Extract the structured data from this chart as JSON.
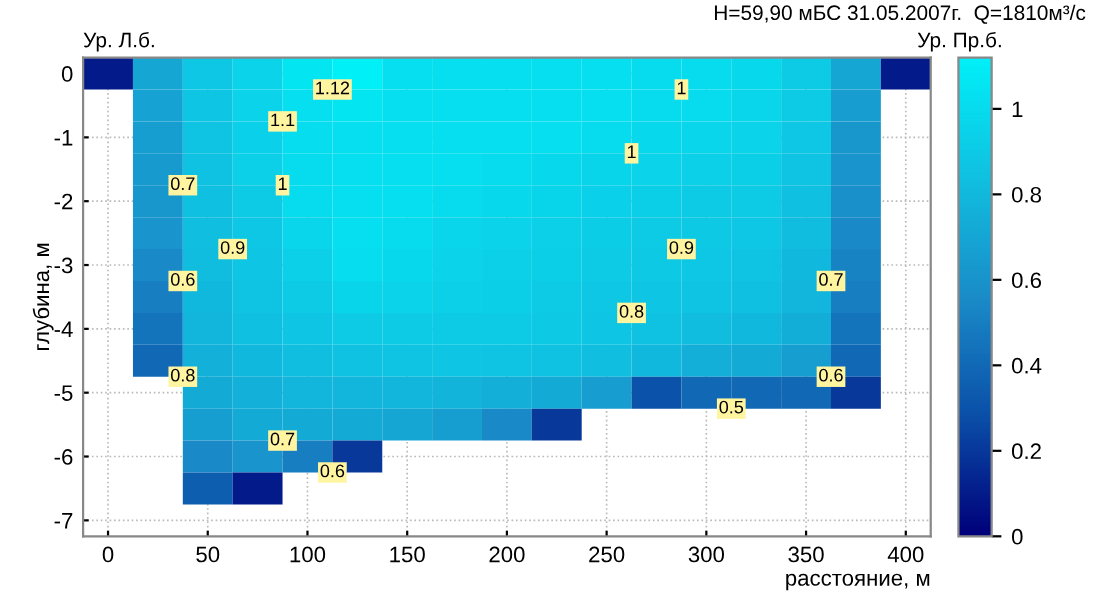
{
  "chart_data": {
    "type": "heatmap",
    "title": "H=59,90 мБС 31.05.2007г.  Q=1810м³/с",
    "xlabel": "расстояние, м",
    "ylabel": "глубина, м",
    "categories": [
      "0",
      null,
      "50",
      null,
      "100",
      null,
      "150",
      null,
      "200",
      null,
      "250",
      null,
      "300",
      null,
      "350",
      null,
      "400"
    ],
    "y_categories": [
      "0",
      null,
      "-1",
      null,
      "-2",
      null,
      "-3",
      null,
      "-4",
      null,
      "-5",
      null,
      "-6",
      null,
      "-7"
    ],
    "clim": [
      0,
      1.12
    ],
    "cticks": [
      0,
      0.2,
      0.4,
      0.6,
      0.8,
      1
    ],
    "grid": true,
    "cells": [
      [
        0.1,
        0.7,
        0.88,
        0.95,
        1.05,
        1.12,
        1.02,
        1.02,
        1.02,
        1.02,
        1.02,
        1.0,
        1.0,
        0.98,
        0.9,
        0.7,
        0.1
      ],
      [
        null,
        0.68,
        0.87,
        0.95,
        1.02,
        1.05,
        1.02,
        1.02,
        1.02,
        1.02,
        1.02,
        1.0,
        1.0,
        0.97,
        0.9,
        0.65,
        null
      ],
      [
        null,
        0.66,
        0.86,
        0.94,
        1.01,
        1.02,
        1.02,
        1.02,
        1.02,
        1.02,
        1.0,
        0.98,
        0.97,
        0.95,
        0.88,
        0.62,
        null
      ],
      [
        null,
        0.64,
        0.85,
        0.93,
        1.0,
        1.02,
        1.02,
        1.02,
        1.0,
        0.98,
        0.96,
        0.95,
        0.93,
        0.92,
        0.86,
        0.6,
        null
      ],
      [
        null,
        0.62,
        0.84,
        0.9,
        1.0,
        1.02,
        1.02,
        1.0,
        0.98,
        0.96,
        0.94,
        0.92,
        0.9,
        0.9,
        0.84,
        0.58,
        null
      ],
      [
        null,
        0.6,
        0.83,
        0.88,
        0.97,
        1.02,
        1.0,
        0.97,
        0.95,
        0.93,
        0.91,
        0.9,
        0.89,
        0.88,
        0.82,
        0.55,
        null
      ],
      [
        null,
        0.55,
        0.82,
        0.87,
        0.93,
        1.01,
        0.98,
        0.95,
        0.93,
        0.92,
        0.9,
        0.89,
        0.88,
        0.86,
        0.8,
        0.52,
        null
      ],
      [
        null,
        0.5,
        0.8,
        0.86,
        0.9,
        0.96,
        0.95,
        0.93,
        0.92,
        0.9,
        0.88,
        0.87,
        0.86,
        0.84,
        0.78,
        0.5,
        null
      ],
      [
        null,
        0.45,
        0.78,
        0.84,
        0.87,
        0.9,
        0.9,
        0.9,
        0.9,
        0.89,
        0.87,
        0.85,
        0.82,
        0.8,
        0.74,
        0.45,
        null
      ],
      [
        null,
        0.4,
        0.76,
        0.8,
        0.83,
        0.85,
        0.86,
        0.87,
        0.86,
        0.85,
        0.83,
        0.8,
        0.75,
        0.72,
        0.66,
        0.4,
        null
      ],
      [
        null,
        null,
        0.72,
        0.76,
        0.78,
        0.78,
        0.78,
        0.77,
        0.75,
        0.72,
        0.65,
        0.3,
        0.4,
        0.4,
        0.4,
        0.2,
        null
      ],
      [
        null,
        null,
        0.66,
        0.72,
        0.72,
        0.72,
        0.7,
        0.66,
        0.55,
        0.2,
        null,
        null,
        null,
        null,
        null,
        null,
        null
      ],
      [
        null,
        null,
        0.55,
        0.6,
        0.5,
        0.2,
        null,
        null,
        null,
        null,
        null,
        null,
        null,
        null,
        null,
        null,
        null
      ],
      [
        null,
        null,
        0.35,
        0.1,
        null,
        null,
        null,
        null,
        null,
        null,
        null,
        null,
        null,
        null,
        null,
        null,
        null
      ],
      [
        null,
        null,
        null,
        null,
        null,
        null,
        null,
        null,
        null,
        null,
        null,
        null,
        null,
        null,
        null,
        null,
        null
      ]
    ],
    "annotations": [
      "Ур. Л.б.",
      "Ур. Пр.б.",
      "1.12",
      "1.1",
      "1",
      "1",
      "1",
      "0.7",
      "0.9",
      "0.6",
      "0.9",
      "0.8",
      "0.7",
      "0.8",
      "0.6",
      "0.5",
      "0.7",
      "0.6"
    ]
  }
}
